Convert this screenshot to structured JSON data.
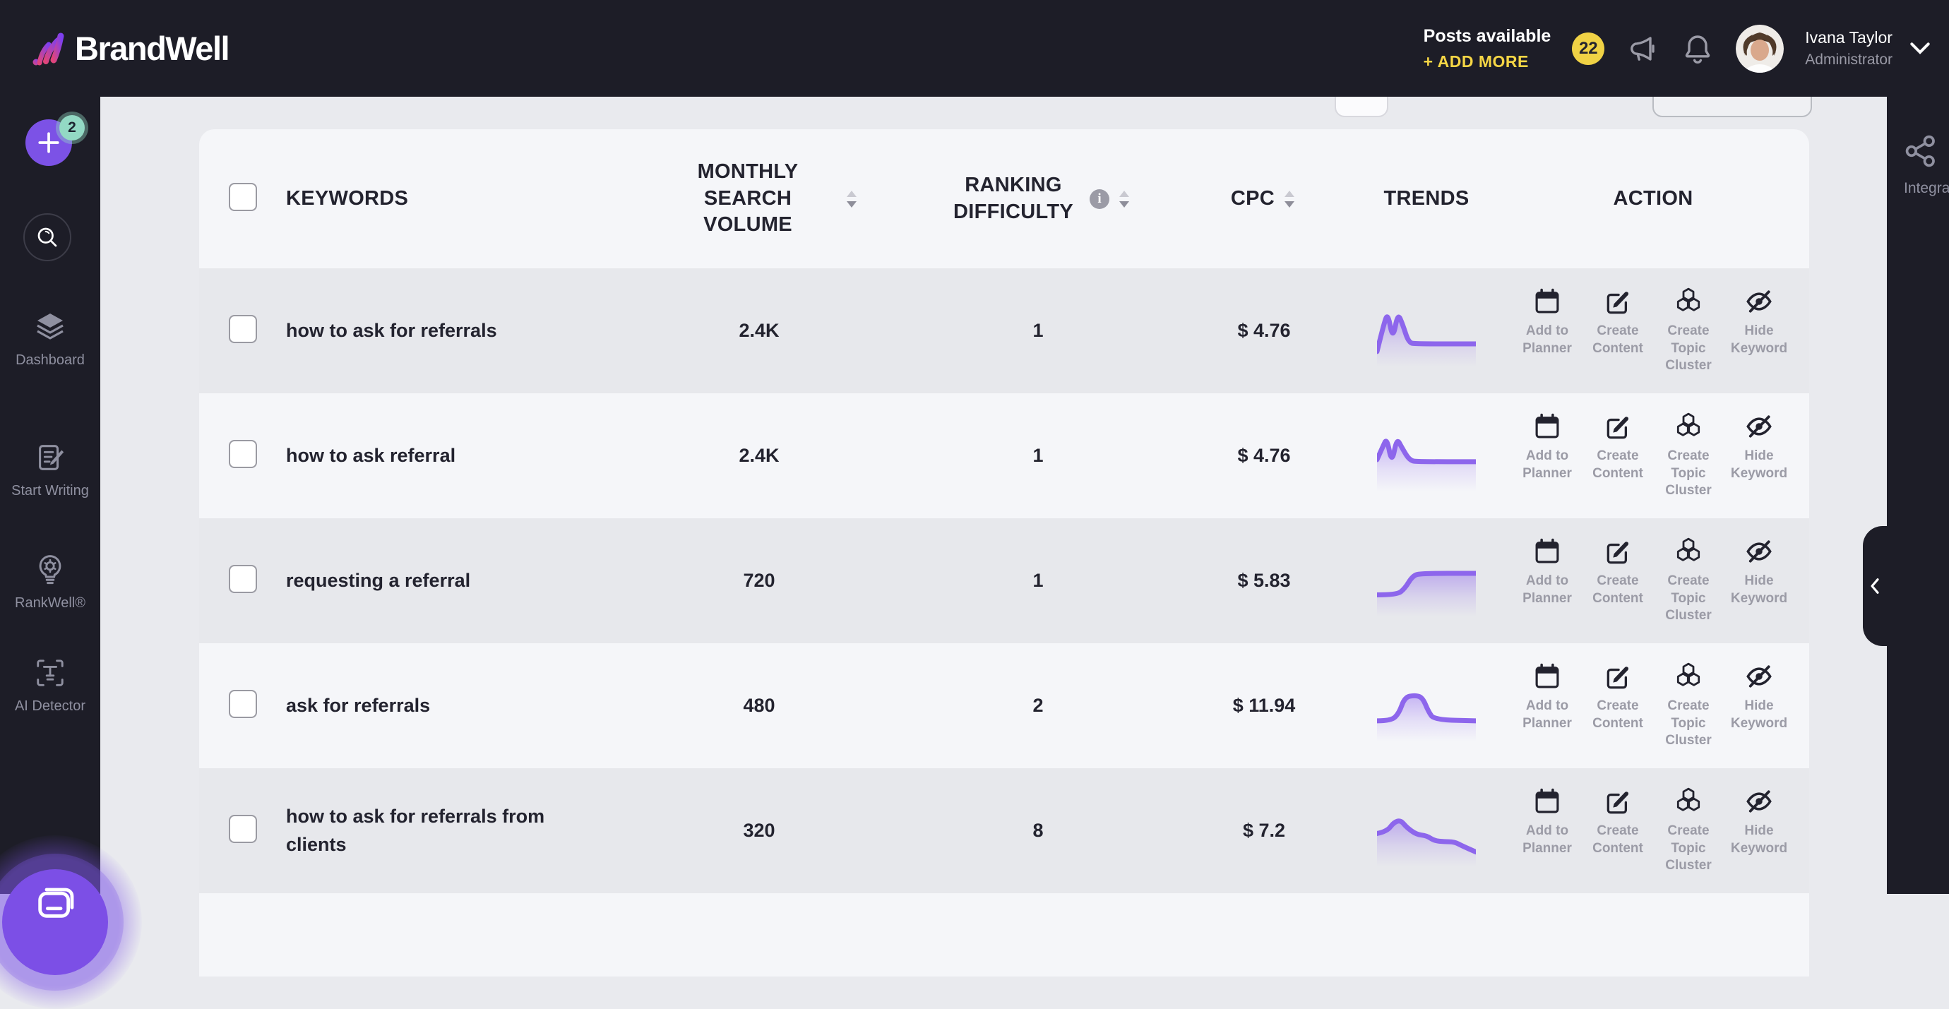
{
  "topbar": {
    "brand": "BrandWell",
    "posts_available_label": "Posts available",
    "add_more_label": "+ ADD MORE",
    "posts_badge": "22",
    "user": {
      "name": "Ivana Taylor",
      "role": "Administrator"
    }
  },
  "sidebar": {
    "plus_badge": "2",
    "items": [
      {
        "label": "Dashboard"
      },
      {
        "label": "Start Writing"
      },
      {
        "label": "RankWell®"
      },
      {
        "label": "AI Detector"
      }
    ]
  },
  "right_panel": {
    "label": "Integrat"
  },
  "table": {
    "columns": {
      "keywords": "KEYWORDS",
      "volume": "MONTHLY SEARCH VOLUME",
      "difficulty": "RANKING DIFFICULTY",
      "cpc": "CPC",
      "trends": "TRENDS",
      "action": "ACTION"
    },
    "actions": [
      "Add to Planner",
      "Create Content",
      "Create Topic Cluster",
      "Hide Keyword"
    ],
    "rows": [
      {
        "keyword": "how to ask for referrals",
        "volume": "2.4K",
        "difficulty": "1",
        "cpc": "$ 4.76",
        "trend": [
          [
            0,
            5
          ],
          [
            7,
            60
          ],
          [
            11,
            80
          ],
          [
            16,
            28
          ],
          [
            21,
            80
          ],
          [
            26,
            58
          ],
          [
            32,
            22
          ],
          [
            40,
            20
          ],
          [
            100,
            20
          ]
        ]
      },
      {
        "keyword": "how to ask referral",
        "volume": "2.4K",
        "difficulty": "1",
        "cpc": "$ 4.76",
        "trend": [
          [
            0,
            38
          ],
          [
            6,
            64
          ],
          [
            10,
            80
          ],
          [
            15,
            30
          ],
          [
            20,
            80
          ],
          [
            25,
            62
          ],
          [
            33,
            36
          ],
          [
            42,
            34
          ],
          [
            100,
            34
          ]
        ]
      },
      {
        "keyword": "requesting a referral",
        "volume": "720",
        "difficulty": "1",
        "cpc": "$ 5.83",
        "trend": [
          [
            0,
            18
          ],
          [
            20,
            18
          ],
          [
            28,
            30
          ],
          [
            36,
            55
          ],
          [
            44,
            60
          ],
          [
            100,
            60
          ]
        ]
      },
      {
        "keyword": "ask for referrals",
        "volume": "480",
        "difficulty": "2",
        "cpc": "$ 11.94",
        "trend": [
          [
            0,
            16
          ],
          [
            14,
            16
          ],
          [
            22,
            30
          ],
          [
            28,
            62
          ],
          [
            38,
            66
          ],
          [
            46,
            62
          ],
          [
            52,
            34
          ],
          [
            58,
            18
          ],
          [
            100,
            16
          ]
        ]
      },
      {
        "keyword": "how to ask for referrals from clients",
        "volume": "320",
        "difficulty": "8",
        "cpc": "$ 7.2",
        "trend": [
          [
            0,
            40
          ],
          [
            10,
            44
          ],
          [
            17,
            62
          ],
          [
            24,
            66
          ],
          [
            30,
            52
          ],
          [
            40,
            38
          ],
          [
            50,
            36
          ],
          [
            58,
            26
          ],
          [
            68,
            24
          ],
          [
            78,
            24
          ],
          [
            86,
            16
          ],
          [
            100,
            4
          ]
        ]
      }
    ]
  },
  "colors": {
    "topbar_bg": "#1d1d27",
    "page_bg": "#e9eaee",
    "card_bg": "#f5f6f9",
    "row_shade": "#e7e8ec",
    "text_dark": "#23232f",
    "text_gray": "#9b9ba6",
    "accent_purple": "#7c52e6",
    "spark_purple": "#8d66ec",
    "yellow": "#f0d245",
    "teal_badge": "#93d9c4"
  }
}
